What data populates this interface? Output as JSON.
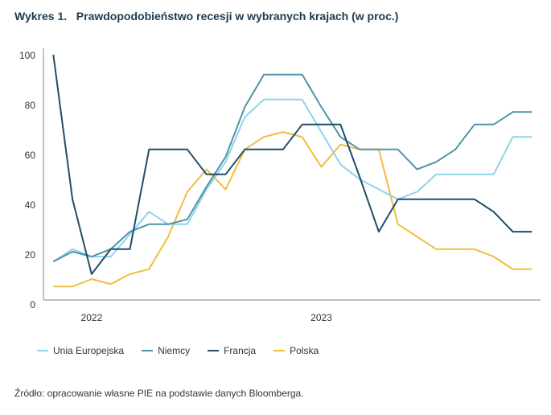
{
  "chart_data": {
    "type": "line",
    "title_label": "Wykres 1.",
    "title": "Prawdopodobieństwo recesji w wybranych krajach (w proc.)",
    "xlabel": "",
    "ylabel": "",
    "ylim": [
      0,
      100
    ],
    "yticks": [
      "0",
      "20",
      "40",
      "60",
      "80",
      "100"
    ],
    "xtick_labels": [
      {
        "index": 2,
        "label": "2022"
      },
      {
        "index": 14,
        "label": "2023"
      }
    ],
    "grid": false,
    "legend_position": "bottom",
    "series": [
      {
        "name": "Unia Europejska",
        "color": "#8fd3ea",
        "values": [
          17,
          22,
          19,
          19,
          28,
          37,
          32,
          32,
          46,
          57,
          75,
          82,
          82,
          82,
          69,
          56,
          50,
          46,
          42,
          45,
          52,
          52,
          52,
          52,
          67,
          67
        ]
      },
      {
        "name": "Niemcy",
        "color": "#4f93aa",
        "values": [
          17,
          21,
          19,
          22,
          29,
          32,
          32,
          34,
          47,
          59,
          79,
          92,
          92,
          92,
          79,
          67,
          62,
          62,
          62,
          54,
          57,
          62,
          72,
          72,
          77,
          77
        ]
      },
      {
        "name": "Francja",
        "color": "#1f4e66",
        "values": [
          100,
          42,
          12,
          22,
          22,
          62,
          62,
          62,
          52,
          52,
          62,
          62,
          62,
          72,
          72,
          72,
          51,
          29,
          42,
          42,
          42,
          42,
          42,
          37,
          29,
          29
        ]
      },
      {
        "name": "Polska",
        "color": "#f2bd3c",
        "values": [
          7,
          7,
          10,
          8,
          12,
          14,
          27,
          45,
          54,
          46,
          62,
          67,
          69,
          67,
          55,
          64,
          62,
          62,
          32,
          27,
          22,
          22,
          22,
          19,
          14,
          14
        ]
      }
    ]
  },
  "source": "Źródło: opracowanie własne PIE na podstawie danych Bloomberga."
}
